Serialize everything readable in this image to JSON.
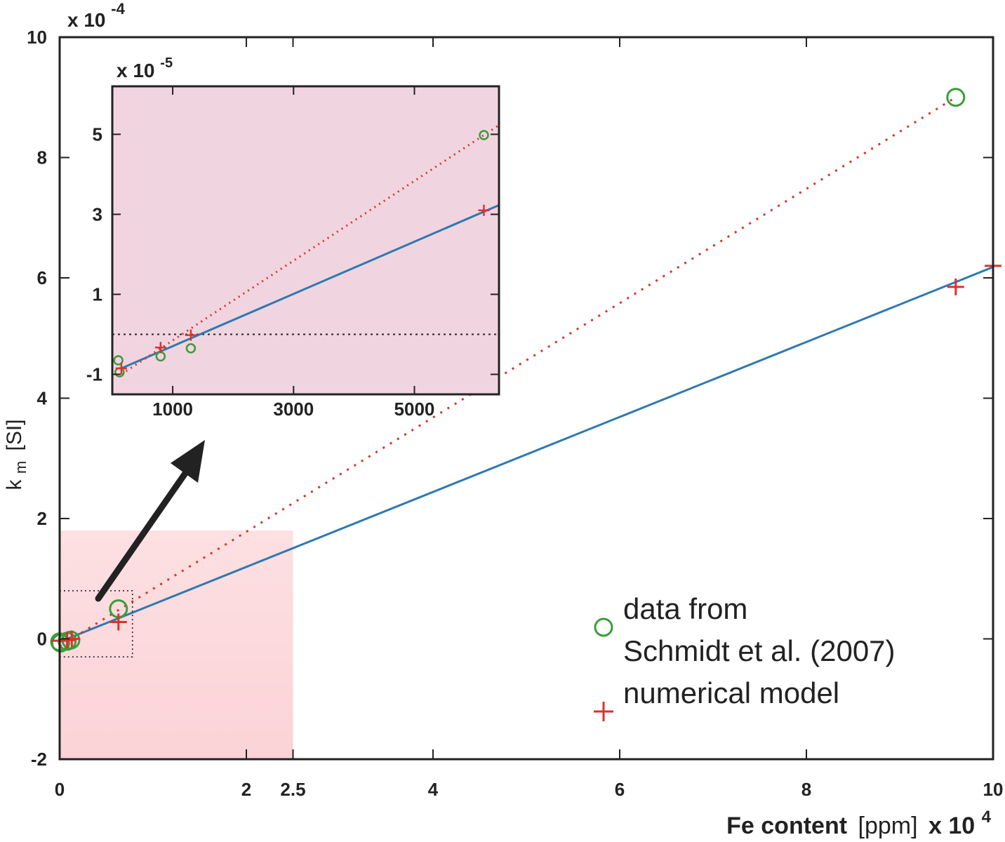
{
  "chart_data": [
    {
      "type": "scatter",
      "xlabel": "Fe content",
      "xlabel_unit": "[ppm]",
      "x_multiplier": "x 10",
      "x_multiplier_exp": "4",
      "ylabel_main": "k",
      "ylabel_sub": "m",
      "ylabel_unit": "[SI]",
      "y_multiplier": "x 10",
      "y_multiplier_exp": "-4",
      "xlim": [
        0,
        10
      ],
      "ylim": [
        -2,
        10
      ],
      "x_ticks": [
        0,
        2,
        2.5,
        4,
        6,
        8,
        10
      ],
      "x_tick_labels": [
        "0",
        "2",
        "2.5",
        "4",
        "6",
        "8",
        "10"
      ],
      "y_ticks": [
        -2,
        0,
        2,
        4,
        6,
        8,
        10
      ],
      "y_tick_labels": [
        "-2",
        "0",
        "2",
        "4",
        "6",
        "8",
        "10"
      ],
      "highlight_region": {
        "x": [
          0,
          2.5
        ],
        "y": [
          -2,
          1.8
        ],
        "color": "#fcd7da"
      },
      "zoom_box": {
        "x": [
          0,
          0.78
        ],
        "y": [
          -0.3,
          0.8
        ]
      },
      "series": [
        {
          "name": "data from Schmidt et al. (2007)",
          "marker": "circle",
          "color": "#3a9c3a",
          "x": [
            0.0,
            0.01,
            0.08,
            0.12,
            0.63,
            9.6
          ],
          "y": [
            -0.05,
            -0.07,
            -0.04,
            -0.02,
            0.5,
            9.0
          ]
        },
        {
          "name": "numerical model",
          "marker": "plus",
          "color": "#d9332b",
          "x": [
            0.0,
            0.08,
            0.13,
            0.63,
            9.6,
            10.0
          ],
          "y": [
            -0.03,
            -0.02,
            0.0,
            0.28,
            5.85,
            6.2
          ]
        }
      ],
      "lines": [
        {
          "label": "linear fit",
          "style": "solid",
          "color": "#2f79b0",
          "x": [
            0,
            10
          ],
          "y": [
            -0.05,
            6.18
          ]
        },
        {
          "label": "dotted fit",
          "style": "dotted",
          "color": "#d9332b",
          "x": [
            0,
            9.6
          ],
          "y": [
            -0.12,
            9.0
          ]
        }
      ],
      "legend": {
        "position": "bottom-right",
        "entries": [
          {
            "marker": "circle",
            "color": "#3a9c3a",
            "lines": [
              "data from",
              "Schmidt et al. (2007)"
            ]
          },
          {
            "marker": "plus",
            "color": "#d9332b",
            "lines": [
              "numerical model"
            ]
          }
        ]
      }
    },
    {
      "type": "scatter",
      "inset": true,
      "y_multiplier": "x 10",
      "y_multiplier_exp": "-5",
      "xlim": [
        0,
        6400
      ],
      "ylim": [
        -1.5,
        6.2
      ],
      "x_ticks": [
        1000,
        3000,
        5000
      ],
      "x_tick_labels": [
        "1000",
        "3000",
        "5000"
      ],
      "y_ticks": [
        -1,
        1,
        3,
        5
      ],
      "y_tick_labels": [
        "-1",
        "1",
        "3",
        "5"
      ],
      "background": "#f0d5e0",
      "zero_line": true,
      "series": [
        {
          "name": "data from Schmidt et al. (2007)",
          "marker": "circle",
          "color": "#3a9c3a",
          "x": [
            100,
            120,
            800,
            1300,
            6150
          ],
          "y": [
            -0.65,
            -0.95,
            -0.55,
            -0.35,
            4.98
          ]
        },
        {
          "name": "numerical model",
          "marker": "plus",
          "color": "#d9332b",
          "x": [
            150,
            800,
            1300,
            6150
          ],
          "y": [
            -0.85,
            -0.33,
            -0.02,
            3.1
          ]
        }
      ],
      "lines": [
        {
          "label": "linear fit",
          "style": "solid",
          "color": "#2f79b0",
          "x": [
            150,
            6400
          ],
          "y": [
            -0.85,
            3.23
          ]
        },
        {
          "label": "dotted fit",
          "style": "dotted",
          "color": "#d9332b",
          "x": [
            150,
            6400
          ],
          "y": [
            -1.0,
            5.23
          ]
        }
      ]
    }
  ]
}
